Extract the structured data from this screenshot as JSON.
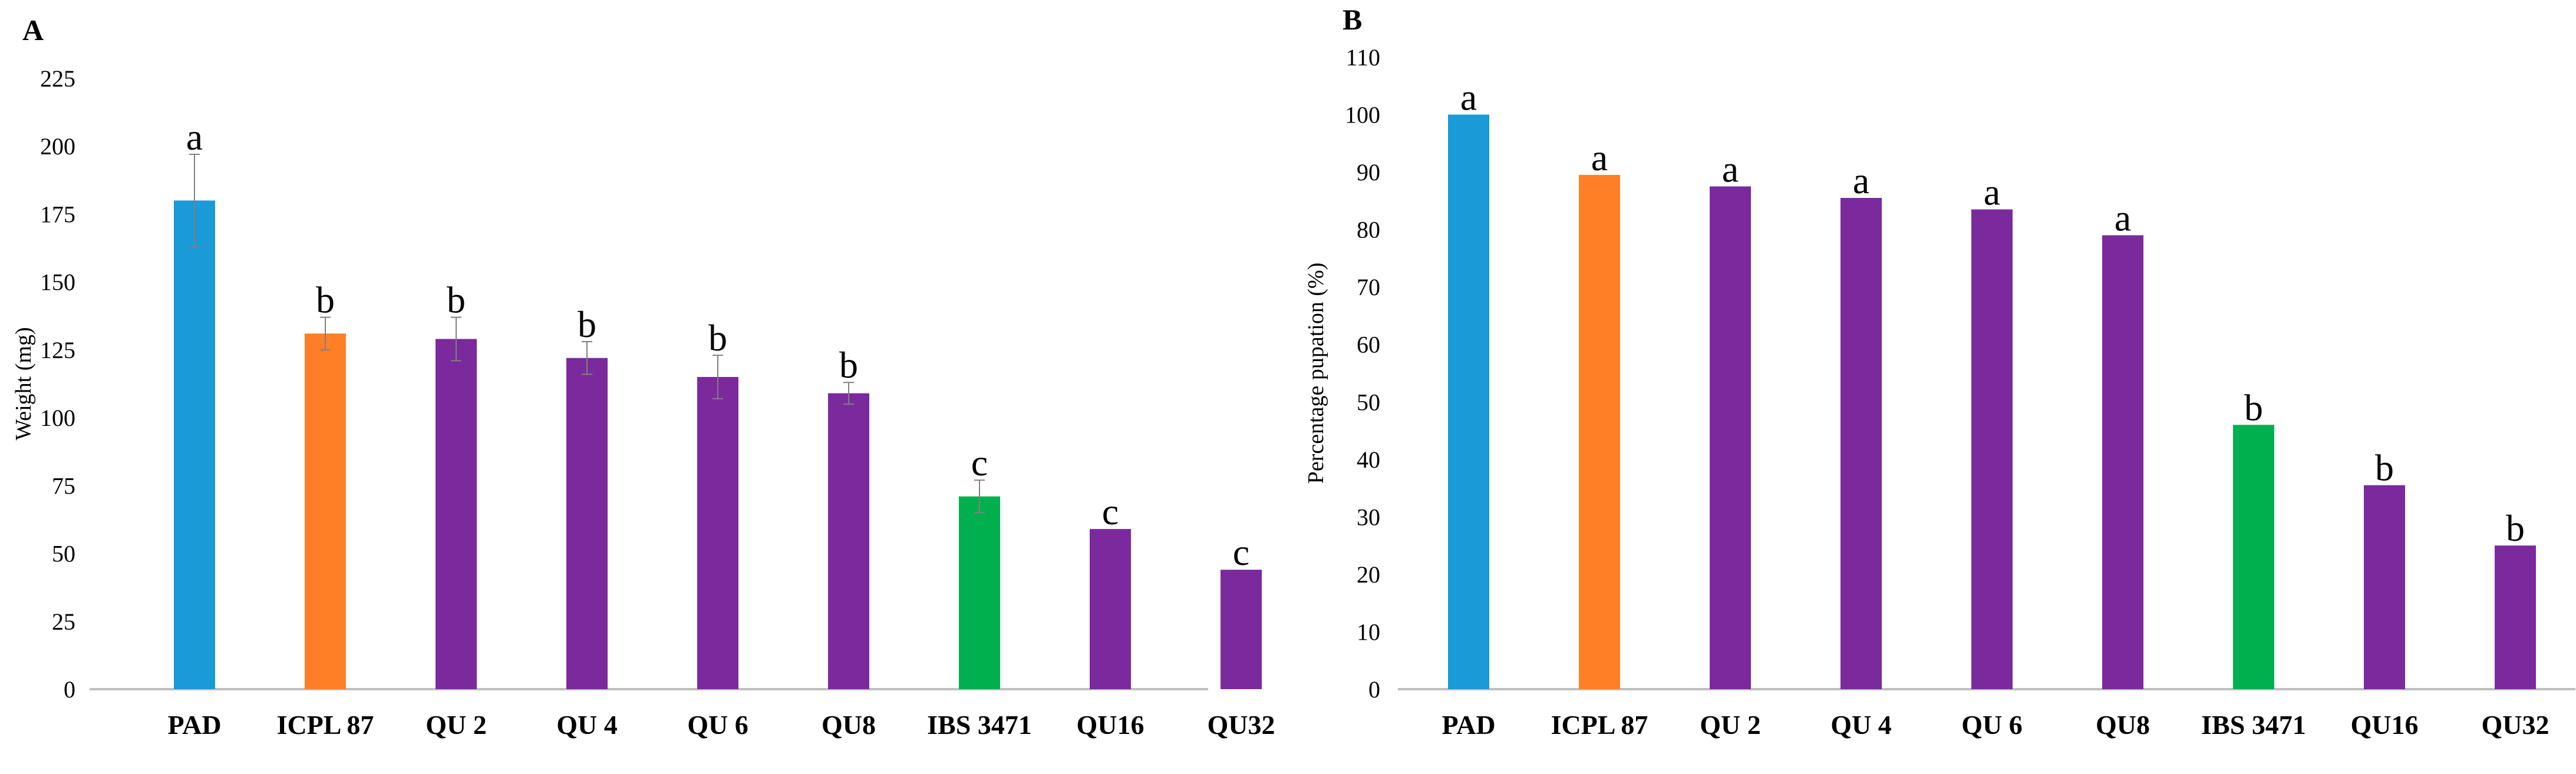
{
  "colors": {
    "pad": "#1a9ad6",
    "icpl": "#ff7f27",
    "qu": "#7b2a9e",
    "ibs": "#00b04f",
    "axis": "#bfbfbf",
    "error": "#808080"
  },
  "chart_data": [
    {
      "type": "bar",
      "panel_label": "A",
      "title": "",
      "xlabel": "",
      "ylabel": "Weight (mg)",
      "ylim": [
        0,
        225
      ],
      "yticks": [
        0,
        25,
        50,
        75,
        100,
        125,
        150,
        175,
        200,
        225
      ],
      "grid": false,
      "categories": [
        "PAD",
        "ICPL 87",
        "QU 2",
        "QU 4",
        "QU 6",
        "QU8",
        "IBS 3471",
        "QU16",
        "QU32"
      ],
      "values": [
        180,
        131,
        129,
        122,
        115,
        109,
        71,
        59,
        44
      ],
      "errors": [
        17,
        6,
        8,
        6,
        8,
        4,
        6,
        0,
        0
      ],
      "significance": [
        "a",
        "b",
        "b",
        "b",
        "b",
        "b",
        "c",
        "c",
        "c"
      ],
      "bar_colors": [
        "pad",
        "icpl",
        "qu",
        "qu",
        "qu",
        "qu",
        "ibs",
        "qu",
        "qu"
      ]
    },
    {
      "type": "bar",
      "panel_label": "B",
      "title": "",
      "xlabel": "",
      "ylabel": "Percentage pupation (%)",
      "ylim": [
        0,
        110
      ],
      "yticks": [
        0,
        10,
        20,
        30,
        40,
        50,
        60,
        70,
        80,
        90,
        100,
        110
      ],
      "grid": false,
      "categories": [
        "PAD",
        "ICPL 87",
        "QU 2",
        "QU 4",
        "QU 6",
        "QU8",
        "IBS 3471",
        "QU16",
        "QU32"
      ],
      "values": [
        100,
        89.5,
        87.5,
        85.5,
        83.5,
        79,
        46,
        35.5,
        25
      ],
      "errors": [
        0,
        0,
        0,
        0,
        0,
        0,
        0,
        0,
        0
      ],
      "significance": [
        "a",
        "a",
        "a",
        "a",
        "a",
        "a",
        "b",
        "b",
        "b"
      ],
      "bar_colors": [
        "pad",
        "icpl",
        "qu",
        "qu",
        "qu",
        "qu",
        "ibs",
        "qu",
        "qu"
      ]
    }
  ]
}
